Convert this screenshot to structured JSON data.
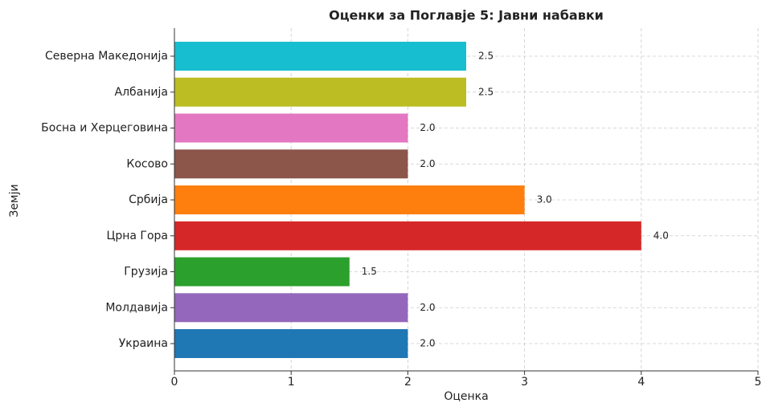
{
  "chart_data": {
    "type": "barh",
    "title": "Оценки за Поглавје 5: Јавни набавки",
    "x_label": "Оценка",
    "y_label": "Земји",
    "categories": [
      "Северна Македонија",
      "Албанија",
      "Босна и Херцеговина",
      "Косово",
      "Србија",
      "Црна Гора",
      "Грузија",
      "Молдавија",
      "Украина"
    ],
    "values": [
      2.5,
      2.5,
      2,
      2,
      3,
      4,
      1.5,
      2,
      2
    ],
    "value_labels": [
      "2.5",
      "2.5",
      "2.0",
      "2.0",
      "3.0",
      "4.0",
      "1.5",
      "2.0",
      "2.0"
    ],
    "colors": [
      "#17becf",
      "#bcbd22",
      "#e377c2",
      "#8c564b",
      "#ff7f0e",
      "#d62728",
      "#2ca02c",
      "#9467bd",
      "#1f77b4"
    ],
    "xlim": [
      0,
      5
    ],
    "xticks": [
      0,
      1,
      2,
      3,
      4,
      5
    ],
    "grid": true
  }
}
